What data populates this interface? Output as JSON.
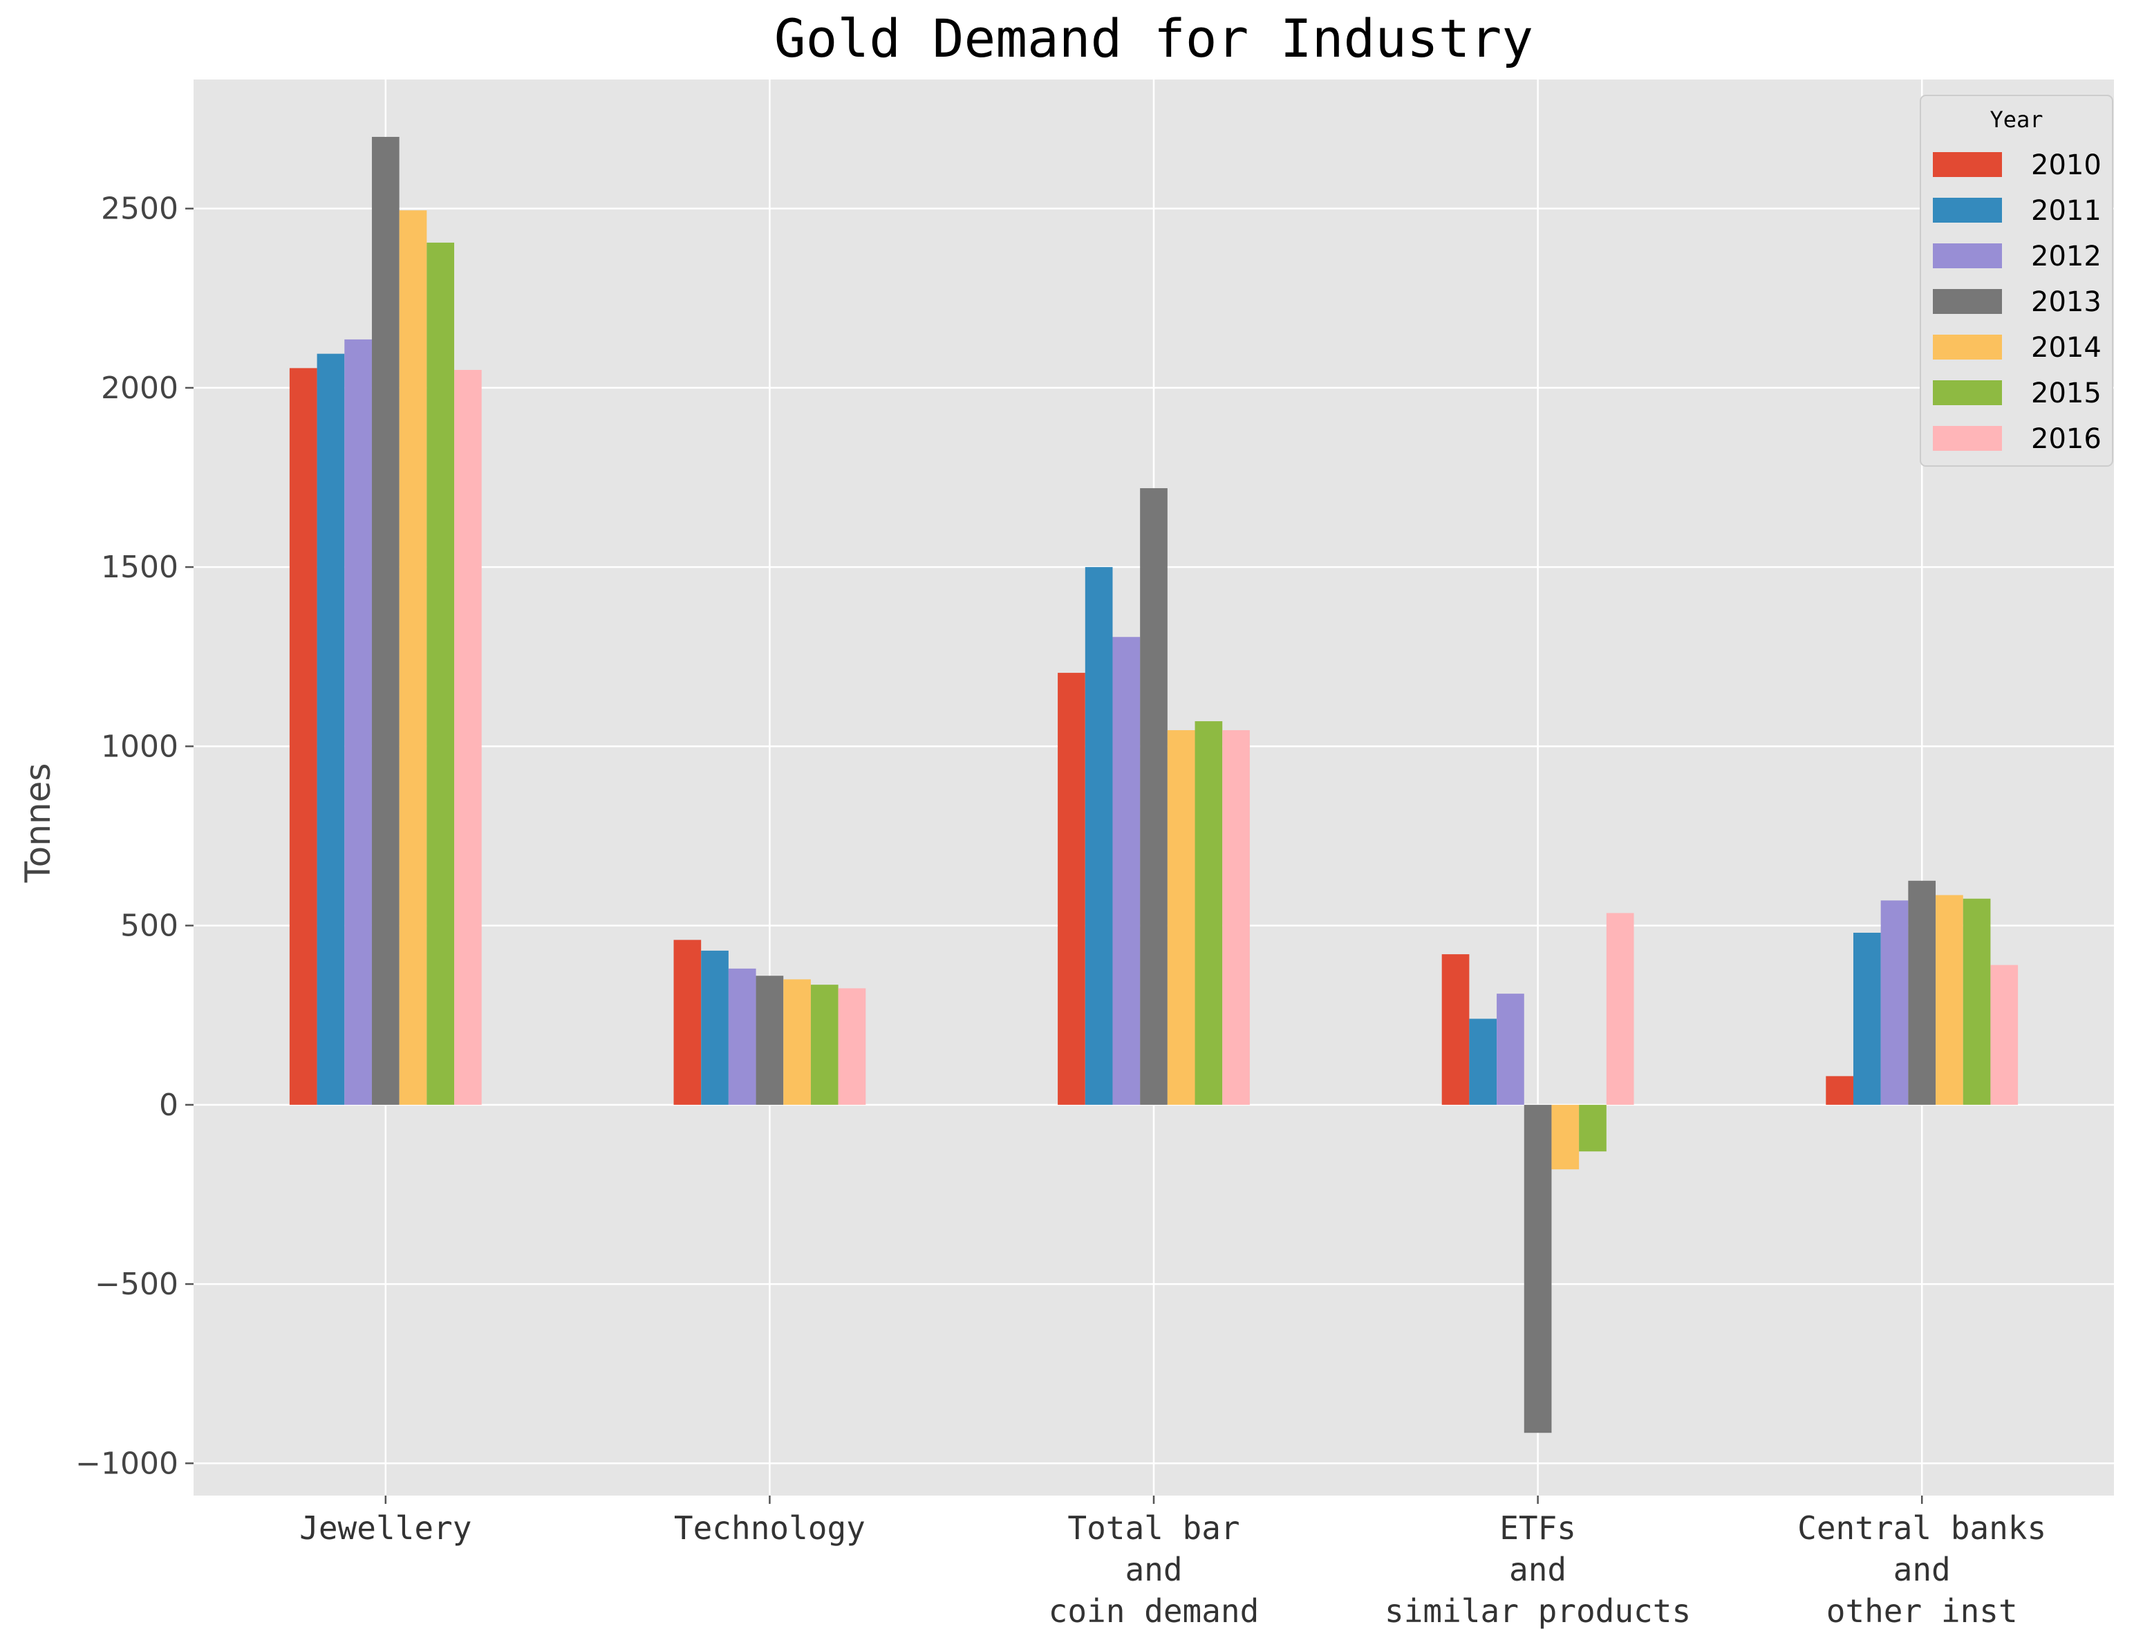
{
  "chart_data": {
    "type": "bar",
    "title": "Gold Demand for Industry",
    "ylabel": "Tonnes",
    "xlabel": "",
    "categories": [
      [
        "Jewellery"
      ],
      [
        "Technology"
      ],
      [
        "Total bar",
        "and",
        "coin demand"
      ],
      [
        "ETFs",
        "and",
        "similar products"
      ],
      [
        "Central banks",
        "and",
        "other inst"
      ]
    ],
    "ylim": [
      -1090,
      2860
    ],
    "yticks": [
      -1000,
      -500,
      0,
      500,
      1000,
      1500,
      2000,
      2500
    ],
    "grid": true,
    "legend": {
      "title": "Year",
      "placement": "top-right"
    },
    "series": [
      {
        "name": "2010",
        "color": "#E24A33",
        "values": [
          2055,
          460,
          1205,
          420,
          80
        ]
      },
      {
        "name": "2011",
        "color": "#348ABD",
        "values": [
          2095,
          430,
          1500,
          240,
          480
        ]
      },
      {
        "name": "2012",
        "color": "#988ED5",
        "values": [
          2135,
          380,
          1305,
          310,
          570
        ]
      },
      {
        "name": "2013",
        "color": "#777777",
        "values": [
          2700,
          360,
          1720,
          -915,
          625
        ]
      },
      {
        "name": "2014",
        "color": "#FBC15E",
        "values": [
          2495,
          350,
          1045,
          -180,
          585
        ]
      },
      {
        "name": "2015",
        "color": "#8EBA42",
        "values": [
          2405,
          335,
          1070,
          -130,
          575
        ]
      },
      {
        "name": "2016",
        "color": "#FFB5B8",
        "values": [
          2050,
          325,
          1045,
          535,
          390
        ]
      }
    ]
  }
}
